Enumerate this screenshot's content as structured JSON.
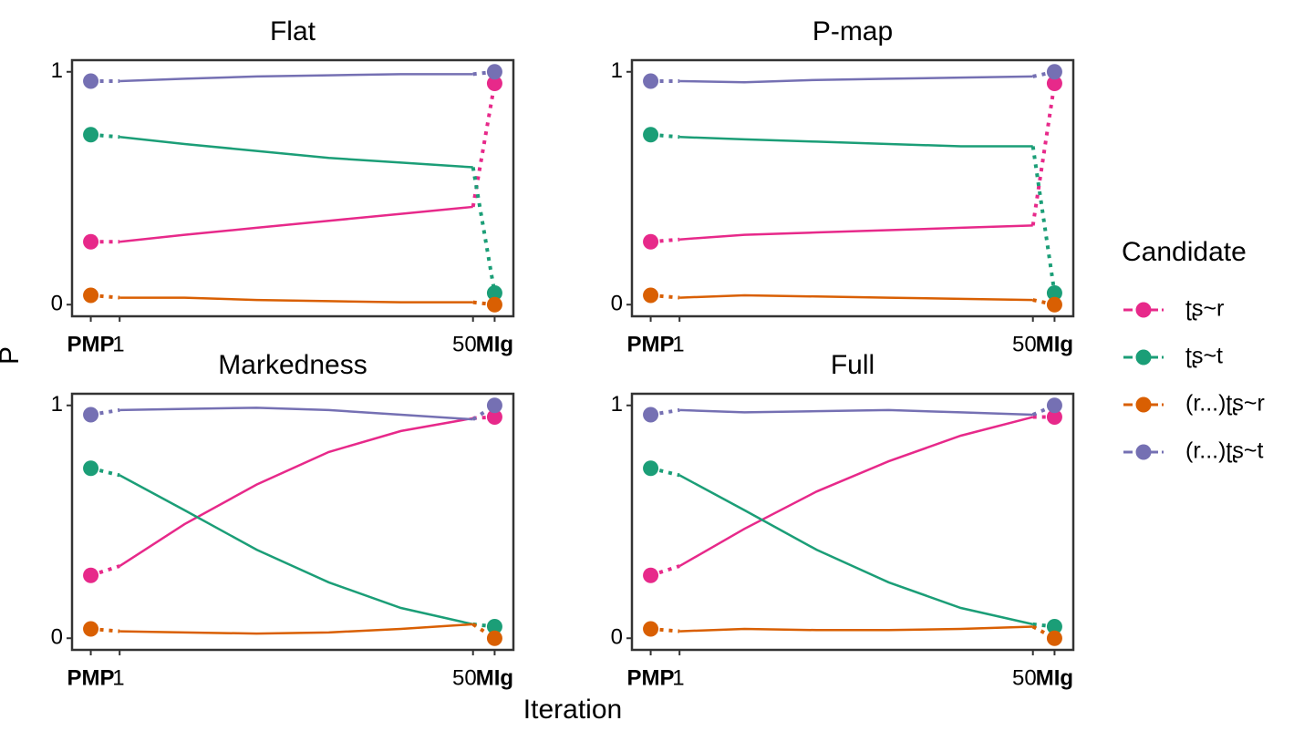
{
  "chart_data": {
    "type": "line",
    "y_label": "P",
    "x_label": "Iteration",
    "legend_title": "Candidate",
    "legend_position": "right",
    "x": [
      -3,
      1,
      10,
      20,
      30,
      40,
      50,
      53
    ],
    "xlim": [
      -5.6,
      55.6
    ],
    "xticks": [
      {
        "value": -3,
        "label": "PMP"
      },
      1,
      50,
      {
        "value": 53,
        "label": "MIg"
      }
    ],
    "ylim": [
      -0.05,
      1.05
    ],
    "yticks": [
      0,
      1
    ],
    "series": [
      {
        "name": "ʈʂ~r",
        "color": "#e7298a"
      },
      {
        "name": "ʈʂ~t",
        "color": "#1b9e77"
      },
      {
        "name": "(r...)ʈʂ~r",
        "color": "#d95f02"
      },
      {
        "name": "(r...)ʈʂ~t",
        "color": "#7570b3"
      }
    ],
    "panels": [
      {
        "title": "Flat",
        "values": [
          [
            0.27,
            0.27,
            0.3,
            0.33,
            0.36,
            0.39,
            0.42,
            0.95
          ],
          [
            0.73,
            0.72,
            0.69,
            0.66,
            0.63,
            0.61,
            0.59,
            0.05
          ],
          [
            0.04,
            0.03,
            0.03,
            0.02,
            0.015,
            0.01,
            0.01,
            0
          ],
          [
            0.96,
            0.96,
            0.97,
            0.98,
            0.985,
            0.99,
            0.99,
            1
          ]
        ]
      },
      {
        "title": "P-map",
        "values": [
          [
            0.27,
            0.28,
            0.3,
            0.31,
            0.32,
            0.33,
            0.34,
            0.95
          ],
          [
            0.73,
            0.72,
            0.71,
            0.7,
            0.69,
            0.68,
            0.68,
            0.05
          ],
          [
            0.04,
            0.03,
            0.04,
            0.035,
            0.03,
            0.025,
            0.02,
            0
          ],
          [
            0.96,
            0.96,
            0.955,
            0.965,
            0.97,
            0.975,
            0.98,
            1
          ]
        ]
      },
      {
        "title": "Markedness",
        "values": [
          [
            0.27,
            0.31,
            0.49,
            0.66,
            0.8,
            0.89,
            0.945,
            0.95
          ],
          [
            0.73,
            0.7,
            0.55,
            0.38,
            0.24,
            0.13,
            0.06,
            0.05
          ],
          [
            0.04,
            0.03,
            0.025,
            0.02,
            0.025,
            0.04,
            0.06,
            0
          ],
          [
            0.96,
            0.98,
            0.985,
            0.99,
            0.98,
            0.96,
            0.94,
            1
          ]
        ]
      },
      {
        "title": "Full",
        "values": [
          [
            0.27,
            0.31,
            0.47,
            0.63,
            0.76,
            0.87,
            0.95,
            0.95
          ],
          [
            0.73,
            0.7,
            0.55,
            0.38,
            0.24,
            0.13,
            0.06,
            0.05
          ],
          [
            0.04,
            0.03,
            0.04,
            0.035,
            0.035,
            0.04,
            0.05,
            0
          ],
          [
            0.96,
            0.98,
            0.97,
            0.975,
            0.98,
            0.97,
            0.96,
            1
          ]
        ]
      }
    ]
  }
}
